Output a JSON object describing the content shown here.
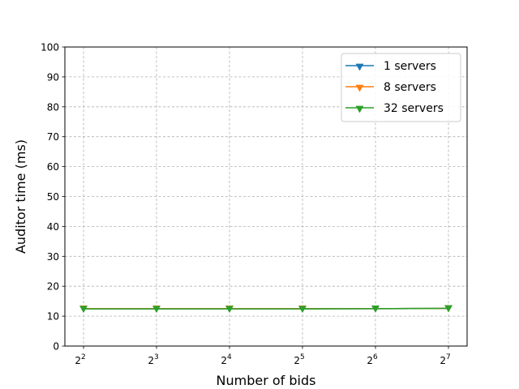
{
  "chart_data": {
    "type": "line",
    "title": "",
    "xlabel": "Number of bids",
    "ylabel": "Auditor time (ms)",
    "x": [
      2,
      3,
      4,
      5,
      6,
      7
    ],
    "x_scale": "log2",
    "x_tick_base": "2",
    "x_tick_exponents": [
      "2",
      "3",
      "4",
      "5",
      "6",
      "7"
    ],
    "ylim": [
      0,
      100
    ],
    "yticks": [
      "0",
      "10",
      "20",
      "30",
      "40",
      "50",
      "60",
      "70",
      "80",
      "90",
      "100"
    ],
    "grid": true,
    "legend_position": "top-right",
    "series": [
      {
        "name": "1 servers",
        "color": "#1f77b4",
        "marker": "triangle-down",
        "values": [
          12.5,
          12.5,
          12.5,
          12.5,
          12.5,
          12.6
        ]
      },
      {
        "name": "8 servers",
        "color": "#ff7f0e",
        "marker": "triangle-down",
        "values": [
          12.5,
          12.5,
          12.5,
          12.5,
          12.5,
          12.6
        ]
      },
      {
        "name": "32 servers",
        "color": "#2ca02c",
        "marker": "triangle-down",
        "values": [
          12.4,
          12.4,
          12.4,
          12.4,
          12.5,
          12.6
        ]
      }
    ]
  }
}
